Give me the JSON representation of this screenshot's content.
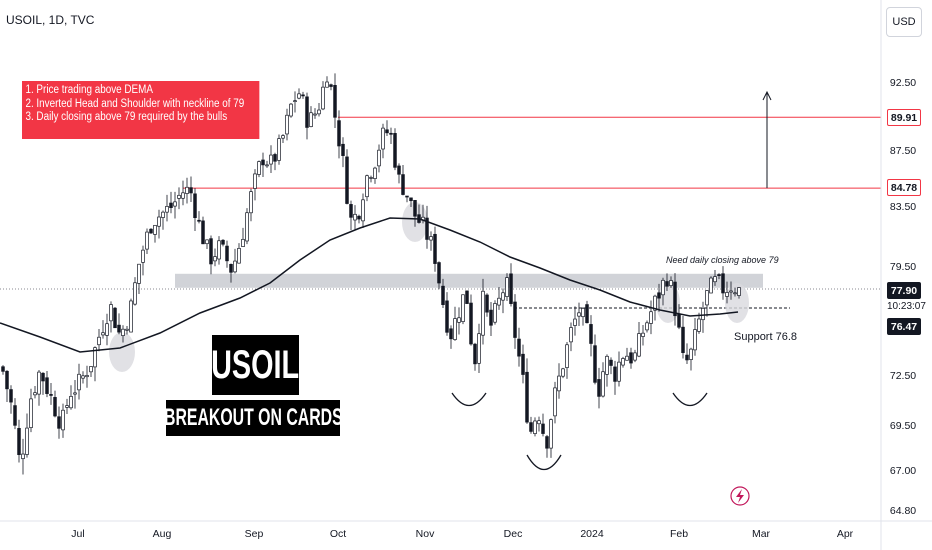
{
  "header": {
    "symbol_title": "USOIL, 1D, TVC",
    "currency": "USD"
  },
  "chart_data": {
    "type": "candlestick",
    "symbol": "USOIL",
    "interval": "1D",
    "source": "TVC",
    "ylim": [
      64.8,
      95.0
    ],
    "x_labels": [
      "Jul",
      "Aug",
      "Sep",
      "Oct",
      "Nov",
      "Dec",
      "2024",
      "Feb",
      "Mar",
      "Apr"
    ],
    "y_ticks": [
      "92.50",
      "87.50",
      "83.50",
      "79.50",
      "72.50",
      "69.50",
      "67.00",
      "64.80"
    ],
    "y_tick_values": [
      92.5,
      87.5,
      83.5,
      79.5,
      72.5,
      69.5,
      67.0,
      64.8
    ],
    "price_tags": [
      {
        "label": "89.91",
        "value": 89.91,
        "style": "red-outline"
      },
      {
        "label": "84.78",
        "value": 84.78,
        "style": "red-outline"
      },
      {
        "label": "77.90",
        "value": 77.9,
        "style": "dark",
        "countdown": "10:23:07"
      },
      {
        "label": "76.47",
        "value": 76.47,
        "style": "dark"
      }
    ],
    "horizontal_levels": [
      {
        "value": 89.91,
        "color": "#f23645",
        "style": "solid"
      },
      {
        "value": 84.78,
        "color": "#f23645",
        "style": "solid"
      },
      {
        "value": 76.8,
        "color": "#131722",
        "style": "dashed"
      },
      {
        "value": 77.9,
        "color": "#131722",
        "style": "dotted"
      }
    ],
    "neckline_zone": {
      "from": 78.1,
      "to": 79.0
    },
    "dema_line_color": "#131722",
    "up_color": "#131722",
    "down_color": "#131722",
    "notes": [
      "1. Price trading above DEMA",
      "2. Inverted Head and Shoulder with neckline of 79",
      "3. Daily closing above 79 required by the bulls"
    ],
    "annotations": {
      "need_closing": "Need daily closing above 79",
      "support": "Support 76.8"
    },
    "badges": {
      "title": "USOIL",
      "subtitle": "BREAKOUT ON CARDS"
    },
    "colors": {
      "accent_red": "#f23645",
      "zone_gray": "#c9cbd1",
      "highlight_circle": "#d9dadf",
      "lightning_icon": "#c2185b"
    }
  }
}
